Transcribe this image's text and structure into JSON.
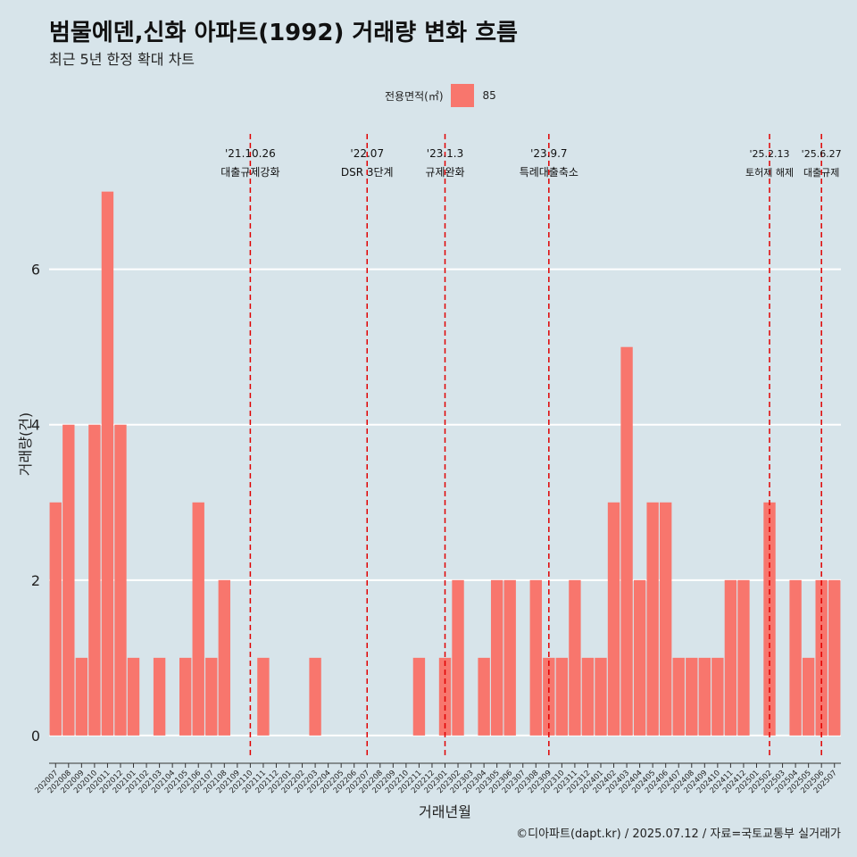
{
  "title": "범물에덴,신화 아파트(1992) 거래량 변화 흐름",
  "subtitle": "최근 5년 한정 확대 차트",
  "legend": {
    "title": "전용면적(㎡)",
    "label": "85"
  },
  "caption": "©디아파트(dapt.kr) / 2025.07.12 / 자료=국토교통부 실거래가",
  "colors": {
    "bar": "#f8766d",
    "background": "#d7e4ea",
    "grid": "#ffffff",
    "event_line": "#e00000"
  },
  "chart_data": {
    "type": "bar",
    "xlabel": "거래년월",
    "ylabel": "거래량(건)",
    "ylim": [
      -0.3,
      7.8
    ],
    "yticks": [
      0,
      2,
      4,
      6
    ],
    "categories": [
      "202007",
      "202008",
      "202009",
      "202010",
      "202011",
      "202012",
      "202101",
      "202102",
      "202103",
      "202104",
      "202105",
      "202106",
      "202107",
      "202108",
      "202109",
      "202110",
      "202111",
      "202112",
      "202201",
      "202202",
      "202203",
      "202204",
      "202205",
      "202206",
      "202207",
      "202208",
      "202209",
      "202210",
      "202211",
      "202212",
      "202301",
      "202302",
      "202303",
      "202304",
      "202305",
      "202306",
      "202307",
      "202308",
      "202309",
      "202310",
      "202311",
      "202312",
      "202401",
      "202402",
      "202403",
      "202404",
      "202405",
      "202406",
      "202407",
      "202408",
      "202409",
      "202410",
      "202411",
      "202412",
      "202501",
      "202502",
      "202503",
      "202504",
      "202505",
      "202506",
      "202507"
    ],
    "series": [
      {
        "name": "85",
        "values": [
          3,
          4,
          1,
          4,
          7,
          4,
          1,
          0,
          1,
          0,
          1,
          3,
          1,
          2,
          0,
          0,
          1,
          0,
          0,
          0,
          1,
          0,
          0,
          0,
          0,
          0,
          0,
          0,
          1,
          0,
          1,
          2,
          0,
          1,
          2,
          2,
          0,
          2,
          1,
          1,
          2,
          1,
          1,
          3,
          5,
          2,
          3,
          3,
          1,
          1,
          1,
          1,
          2,
          2,
          0,
          3,
          0,
          2,
          1,
          2,
          2
        ]
      }
    ],
    "annotations": [
      {
        "at": "202110",
        "date": "'21.10.26",
        "label": "대출규제강화"
      },
      {
        "at": "202207",
        "date": "'22.07",
        "label": "DSR 3단계"
      },
      {
        "at": "202301",
        "date": "'23.1.3",
        "label": "규제완화"
      },
      {
        "at": "202309",
        "date": "'23.9.7",
        "label": "특례대출축소"
      },
      {
        "at": "202502",
        "date": "'25.2.13",
        "label": "토허제 해제"
      },
      {
        "at": "202506",
        "date": "'25.6.27",
        "label": "대출규제"
      }
    ]
  }
}
